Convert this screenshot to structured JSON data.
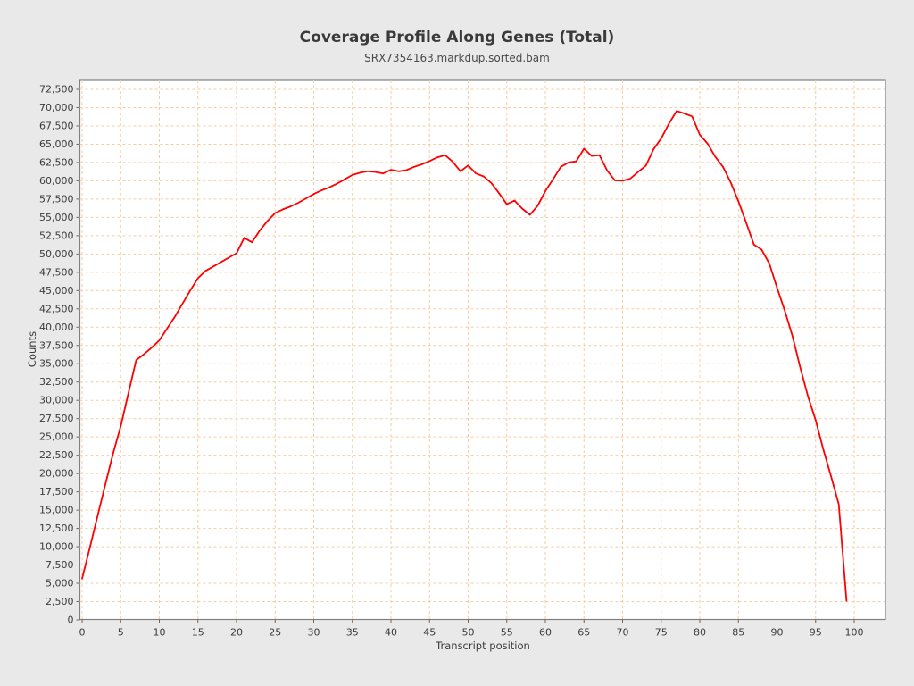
{
  "header": {
    "title": "Coverage Profile Along Genes (Total)",
    "subtitle": "SRX7354163.markdup.sorted.bam"
  },
  "chart_data": {
    "type": "line",
    "title": "Coverage Profile Along Genes (Total)",
    "subtitle": "SRX7354163.markdup.sorted.bam",
    "xlabel": "Transcript position",
    "ylabel": "Counts",
    "xlim": [
      0,
      104
    ],
    "ylim": [
      0,
      73700
    ],
    "x_ticks": [
      0,
      5,
      10,
      15,
      20,
      25,
      30,
      35,
      40,
      45,
      50,
      55,
      60,
      65,
      70,
      75,
      80,
      85,
      90,
      95,
      100
    ],
    "y_ticks": [
      0,
      2500,
      5000,
      7500,
      10000,
      12500,
      15000,
      17500,
      20000,
      22500,
      25000,
      27500,
      30000,
      32500,
      35000,
      37500,
      40000,
      42500,
      45000,
      47500,
      50000,
      52500,
      55000,
      57500,
      60000,
      62500,
      65000,
      67500,
      70000,
      72500
    ],
    "grid": true,
    "grid_style": "dashed",
    "legend_position": "none",
    "series": [
      {
        "name": "SRX7354163.markdup.sorted.bam",
        "x": [
          0,
          1,
          2,
          3,
          4,
          5,
          6,
          7,
          8,
          9,
          10,
          11,
          12,
          13,
          14,
          15,
          16,
          17,
          18,
          19,
          20,
          21,
          22,
          23,
          24,
          25,
          26,
          27,
          28,
          29,
          30,
          31,
          32,
          33,
          34,
          35,
          36,
          37,
          38,
          39,
          40,
          41,
          42,
          43,
          44,
          45,
          46,
          47,
          48,
          49,
          50,
          51,
          52,
          53,
          54,
          55,
          56,
          57,
          58,
          59,
          60,
          61,
          62,
          63,
          64,
          65,
          66,
          67,
          68,
          69,
          70,
          71,
          72,
          73,
          74,
          75,
          76,
          77,
          78,
          79,
          80,
          81,
          82,
          83,
          84,
          85,
          86,
          87,
          88,
          89,
          90,
          91,
          92,
          93,
          94,
          95,
          96,
          97,
          98,
          99
        ],
        "values": [
          5650,
          9900,
          14200,
          18500,
          22700,
          26500,
          31000,
          35500,
          36300,
          37200,
          38200,
          39800,
          41400,
          43200,
          45000,
          46700,
          47700,
          48300,
          48900,
          49500,
          50100,
          52200,
          51600,
          53200,
          54500,
          55600,
          56100,
          56500,
          57000,
          57600,
          58200,
          58700,
          59100,
          59600,
          60200,
          60800,
          61100,
          61300,
          61200,
          61000,
          61500,
          61300,
          61450,
          61900,
          62250,
          62700,
          63200,
          63500,
          62600,
          61300,
          62100,
          61000,
          60600,
          59700,
          58300,
          56800,
          57300,
          56200,
          55350,
          56600,
          58600,
          60200,
          61900,
          62500,
          62650,
          64400,
          63400,
          63500,
          61400,
          60050,
          60000,
          60300,
          61200,
          62050,
          64300,
          65800,
          67800,
          69550,
          69200,
          68800,
          66300,
          65100,
          63300,
          61900,
          59800,
          57200,
          54300,
          51300,
          50600,
          48700,
          45400,
          42300,
          38800,
          34500,
          30600,
          27300,
          23300,
          19600,
          15800,
          2600
        ]
      }
    ]
  },
  "colors": {
    "background": "#e9e9e9",
    "plot_background": "#ffffff",
    "frame_border": "#808080",
    "grid_line": "#f7cba1",
    "series_line": "#ff0000",
    "tick_mark": "#666666",
    "tick_label": "#3a3a3a",
    "title_text": "#3a3a3a"
  }
}
